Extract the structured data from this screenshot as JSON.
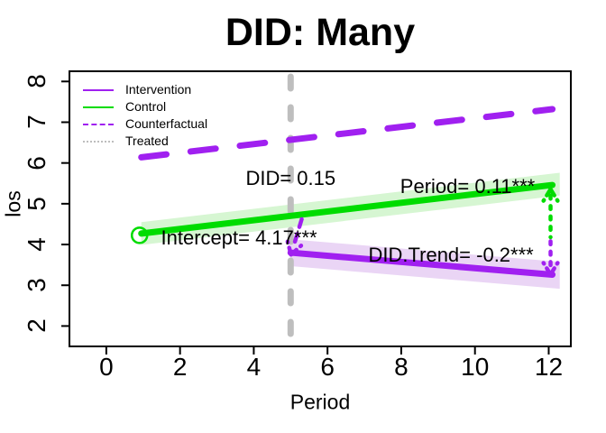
{
  "chart_data": {
    "type": "line",
    "title": "DID: Many",
    "xlabel": "Period",
    "ylabel": "los",
    "xlim": [
      -1,
      12.6
    ],
    "ylim": [
      1.5,
      8.25
    ],
    "xticks": [
      0,
      2,
      4,
      6,
      8,
      10,
      12
    ],
    "yticks": [
      2,
      3,
      4,
      5,
      6,
      7,
      8
    ],
    "grid": false,
    "legend_position": "top-left",
    "treatment_vline": {
      "x": 5,
      "color": "#BEBEBE",
      "style": "dashed"
    },
    "series": [
      {
        "name": "Counterfactual",
        "color": "#A020F0",
        "style": "dashed",
        "width": 7,
        "x": [
          0.95,
          12.1
        ],
        "y": [
          6.14,
          7.32
        ]
      },
      {
        "name": "Control",
        "color": "#00DC00",
        "style": "solid",
        "width": 7,
        "x": [
          0.95,
          12.1
        ],
        "y": [
          4.27,
          5.46
        ],
        "band": 0.28,
        "band_color": "#D6F6D2",
        "marker_start": "open-circle"
      },
      {
        "name": "Intervention",
        "color": "#A020F0",
        "style": "solid",
        "width": 7,
        "x": [
          5,
          12.1
        ],
        "y": [
          3.8,
          3.26
        ],
        "band": 0.33,
        "band_color": "#EAD5F5"
      }
    ],
    "annotations": [
      {
        "text": "DID= 0.15",
        "x": 5.0,
        "y": 5.62
      },
      {
        "text": "Period= 0.11***",
        "x": 9.8,
        "y": 5.42
      },
      {
        "text": "Intercept= 4.17***",
        "x": 3.6,
        "y": 4.16
      },
      {
        "text": "DID.Trend= -0.2***",
        "x": 9.35,
        "y": 3.74
      }
    ],
    "decorations": [
      {
        "name": "treatment-drop-arrow",
        "color": "#A020F0",
        "style": "dashed",
        "from": [
          5.3,
          4.62
        ],
        "to": [
          5.06,
          3.9
        ],
        "arrowhead": "end"
      },
      {
        "name": "effect-gap-arrow-green",
        "color": "#00DC00",
        "style": "dotted",
        "from": [
          12.05,
          5.2
        ],
        "to": [
          12.05,
          4.18
        ],
        "arrowhead": "start"
      },
      {
        "name": "effect-gap-arrow-purple",
        "color": "#A020F0",
        "style": "dotted",
        "from": [
          12.05,
          4.08
        ],
        "to": [
          12.05,
          3.42
        ],
        "arrowhead": "end"
      }
    ],
    "legend": [
      {
        "label": "Intervention",
        "color": "#A020F0",
        "style": "solid"
      },
      {
        "label": "Control",
        "color": "#00DC00",
        "style": "solid"
      },
      {
        "label": "Counterfactual",
        "color": "#A020F0",
        "style": "dashed"
      },
      {
        "label": "Treated",
        "color": "#BEBEBE",
        "style": "dotted"
      }
    ],
    "frame_color": "#000000"
  }
}
